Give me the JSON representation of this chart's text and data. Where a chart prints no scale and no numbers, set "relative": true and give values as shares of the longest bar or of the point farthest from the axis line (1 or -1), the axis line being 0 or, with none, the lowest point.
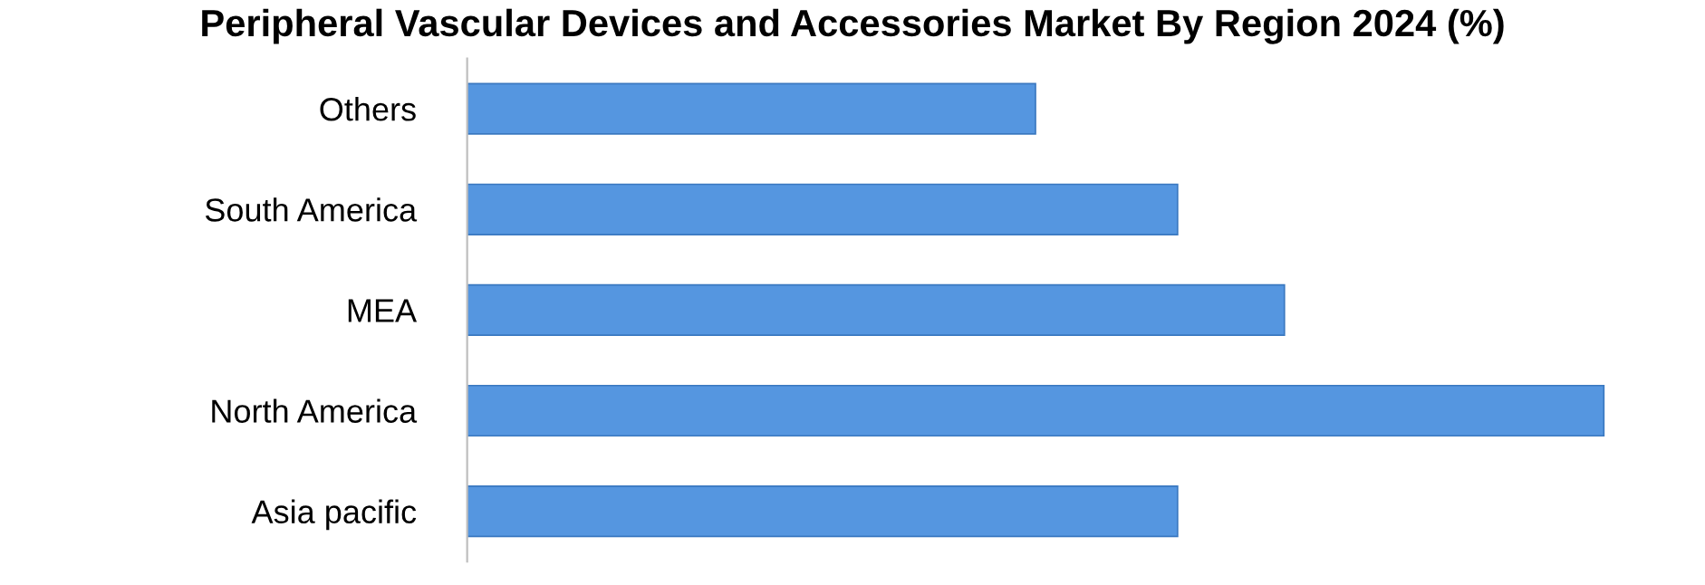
{
  "chart_data": {
    "type": "bar",
    "orientation": "horizontal",
    "relative": true,
    "title": "Peripheral Vascular Devices and Accessories Market By Region 2024 (%)",
    "categories": [
      "Others",
      "South America",
      "MEA",
      "North America",
      "Asia pacific"
    ],
    "values": [
      0.5,
      0.625,
      0.719,
      1,
      0.625
    ],
    "color": "#5596e0",
    "grid": false,
    "legend": false
  }
}
